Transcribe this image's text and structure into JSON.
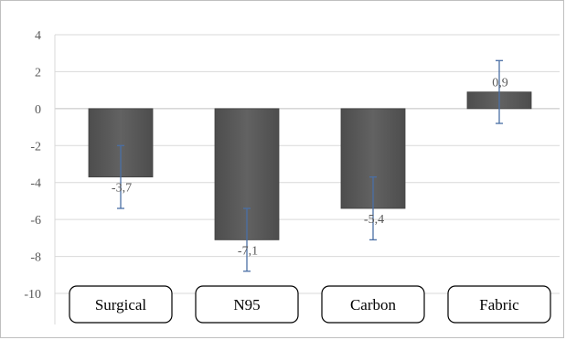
{
  "chart_data": {
    "type": "bar",
    "categories": [
      "Surgical",
      "N95",
      "Carbon",
      "Fabric"
    ],
    "values": [
      -3.7,
      -7.1,
      -5.4,
      0.9
    ],
    "value_labels": [
      "-3,7",
      "-7,1",
      "-5,4",
      "0,9"
    ],
    "error_low": [
      -5.4,
      -8.8,
      -7.1,
      -0.8
    ],
    "error_high": [
      -2.0,
      -5.4,
      -3.7,
      2.6
    ],
    "ylim": [
      -10,
      4
    ],
    "yticks": [
      4,
      2,
      0,
      -2,
      -4,
      -6,
      -8,
      -10
    ],
    "ytick_labels": [
      "4",
      "2",
      "0",
      "-2",
      "-4",
      "-6",
      "-8",
      "-10"
    ],
    "grid": true,
    "title": "",
    "xlabel": "",
    "ylabel": "",
    "colors": {
      "bar": "#595959",
      "bar_edge": "#404040",
      "error_bar": "#4a6fa5"
    }
  }
}
